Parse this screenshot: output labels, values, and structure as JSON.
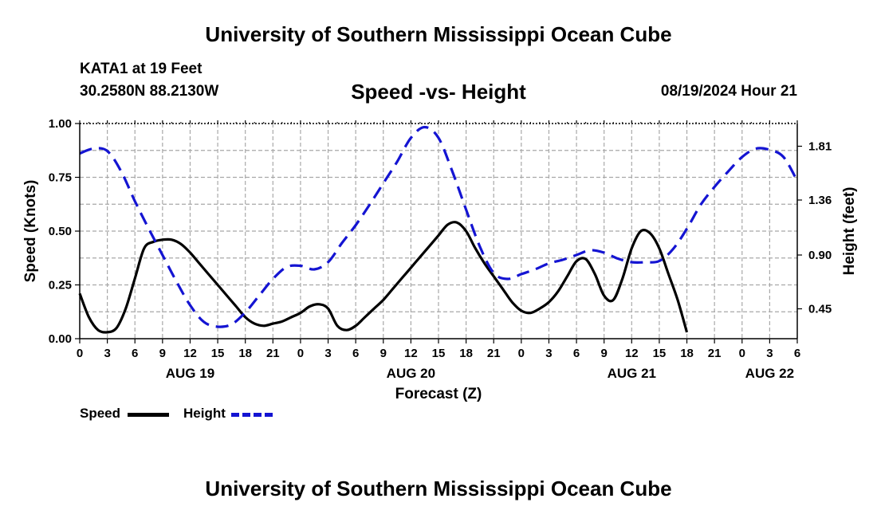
{
  "header": {
    "title": "University of Southern Mississippi Ocean Cube",
    "station": "KATA1 at 19 Feet",
    "coords": "30.2580N  88.2130W",
    "chart_title": "Speed -vs- Height",
    "run_time": "08/19/2024 Hour 21"
  },
  "footer": {
    "title": "University of Southern Mississippi Ocean Cube"
  },
  "legend": {
    "speed_label": "Speed",
    "height_label": "Height"
  },
  "colors": {
    "speed": "#000000",
    "height": "#1414d2",
    "grid": "#a8a8a8"
  },
  "chart_data": {
    "type": "line",
    "xlabel": "Forecast (Z)",
    "ylabel": "Speed (Knots)",
    "y2label": "Height (feet)",
    "xlim": [
      0,
      78
    ],
    "ylim": [
      0,
      1
    ],
    "y2lim": [
      0.2,
      2.0
    ],
    "x_ticks": [
      0,
      3,
      6,
      9,
      12,
      15,
      18,
      21,
      24,
      27,
      30,
      33,
      36,
      39,
      42,
      45,
      48,
      51,
      54,
      57,
      60,
      63,
      66,
      69,
      72,
      75,
      78
    ],
    "x_tick_labels": [
      "0",
      "3",
      "6",
      "9",
      "12",
      "15",
      "18",
      "21",
      "0",
      "3",
      "6",
      "9",
      "12",
      "15",
      "18",
      "21",
      "0",
      "3",
      "6",
      "9",
      "12",
      "15",
      "18",
      "21",
      "0",
      "3",
      "6"
    ],
    "day_labels": [
      {
        "x": 12,
        "label": "AUG 19"
      },
      {
        "x": 36,
        "label": "AUG 20"
      },
      {
        "x": 60,
        "label": "AUG 21"
      },
      {
        "x": 75,
        "label": "AUG 22"
      }
    ],
    "y_ticks": [
      0,
      0.25,
      0.5,
      0.75,
      1.0
    ],
    "y_tick_labels": [
      "0.00",
      "0.25",
      "0.50",
      "0.75",
      "1.00"
    ],
    "y2_ticks": [
      0.45,
      0.9,
      1.36,
      1.81
    ],
    "y2_tick_labels": [
      "0.45",
      "0.90",
      "1.36",
      "1.81"
    ],
    "series": [
      {
        "name": "Speed",
        "axis": "left",
        "x": [
          0,
          1,
          2,
          3,
          4,
          5,
          6,
          7,
          8,
          9,
          10,
          11,
          12,
          13,
          14,
          15,
          16,
          17,
          18,
          19,
          20,
          21,
          22,
          23,
          24,
          25,
          26,
          27,
          28,
          29,
          30,
          31,
          32,
          33,
          34,
          35,
          36,
          37,
          38,
          39,
          40,
          41,
          42,
          43,
          44,
          45,
          46,
          47,
          48,
          49,
          50,
          51,
          52,
          53,
          54,
          55,
          56,
          57,
          58,
          59,
          60,
          61,
          62,
          63,
          64,
          65,
          66,
          67,
          68,
          69,
          70,
          71,
          72,
          73,
          74,
          75,
          76,
          77,
          78
        ],
        "values": [
          0.21,
          0.1,
          0.04,
          0.03,
          0.05,
          0.14,
          0.28,
          0.42,
          0.45,
          0.46,
          0.46,
          0.44,
          0.4,
          0.35,
          0.3,
          0.25,
          0.2,
          0.15,
          0.1,
          0.07,
          0.06,
          0.07,
          0.08,
          0.1,
          0.12,
          0.15,
          0.16,
          0.14,
          0.06,
          0.04,
          0.06,
          0.1,
          0.14,
          0.18,
          0.23,
          0.28,
          0.33,
          0.38,
          0.43,
          0.48,
          0.53,
          0.54,
          0.5,
          0.42,
          0.35,
          0.29,
          0.23,
          0.17,
          0.13,
          0.12,
          0.14,
          0.17,
          0.22,
          0.29,
          0.36,
          0.37,
          0.3,
          0.2,
          0.18,
          0.28,
          0.42,
          0.5,
          0.49,
          0.42,
          0.3,
          0.18,
          0.03,
          null,
          null,
          null,
          null,
          null,
          null,
          null,
          null,
          null,
          null,
          null,
          null
        ]
      },
      {
        "name": "Height",
        "axis": "right",
        "x": [
          0,
          1.5,
          3,
          4.5,
          6,
          7.5,
          9,
          10.5,
          12,
          13.5,
          15,
          16.5,
          18,
          19.5,
          21,
          22.5,
          24,
          25.5,
          27,
          28.5,
          30,
          31.5,
          33,
          34.5,
          36,
          37.5,
          39,
          40.5,
          42,
          43.5,
          45,
          46.5,
          48,
          49.5,
          51,
          52.5,
          54,
          55.5,
          57,
          58.5,
          60,
          61.5,
          63,
          64.5,
          66,
          67.5,
          69,
          70.5,
          72,
          73.5,
          75,
          76.5,
          78
        ],
        "values": [
          1.75,
          1.79,
          1.77,
          1.6,
          1.35,
          1.12,
          0.9,
          0.68,
          0.48,
          0.34,
          0.3,
          0.32,
          0.42,
          0.56,
          0.7,
          0.8,
          0.81,
          0.78,
          0.84,
          1.0,
          1.15,
          1.32,
          1.5,
          1.68,
          1.88,
          1.97,
          1.88,
          1.6,
          1.28,
          0.97,
          0.75,
          0.7,
          0.74,
          0.78,
          0.83,
          0.86,
          0.9,
          0.94,
          0.92,
          0.87,
          0.84,
          0.84,
          0.85,
          0.95,
          1.12,
          1.32,
          1.47,
          1.6,
          1.72,
          1.79,
          1.78,
          1.72,
          1.52
        ]
      }
    ]
  }
}
